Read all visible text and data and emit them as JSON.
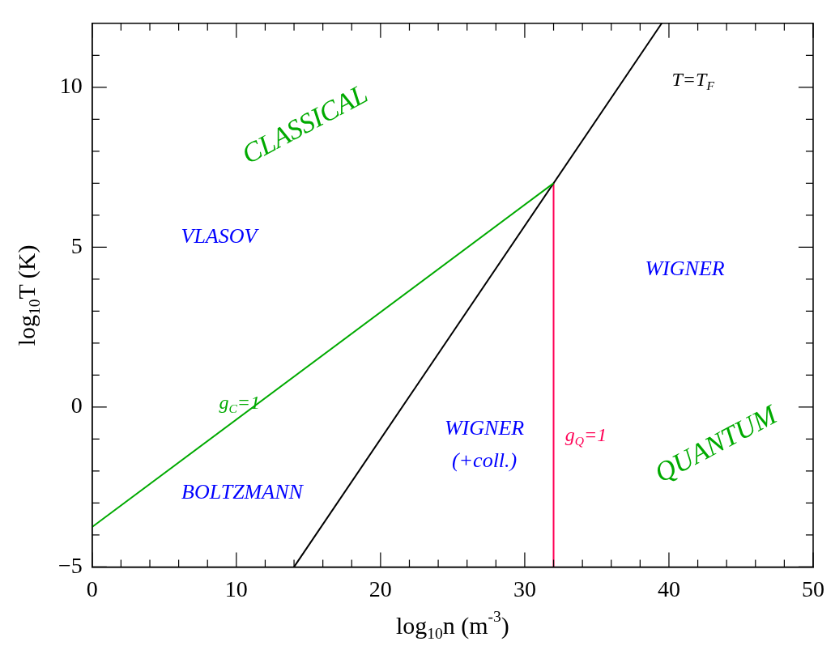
{
  "chart_data": {
    "type": "line",
    "xlabel": "log$_{10}$n (m$^{-3}$)",
    "ylabel": "log$_{10}$T (K)",
    "xlim": [
      0,
      50
    ],
    "ylim": [
      -5,
      12
    ],
    "xticks": [
      0,
      {
        "value": 2,
        "label": null
      },
      {
        "value": 4,
        "label": null
      },
      {
        "value": 6,
        "label": null
      },
      {
        "value": 8,
        "label": null
      },
      10,
      {
        "value": 12,
        "label": null
      },
      {
        "value": 14,
        "label": null
      },
      {
        "value": 16,
        "label": null
      },
      {
        "value": 18,
        "label": null
      },
      20,
      {
        "value": 22,
        "label": null
      },
      {
        "value": 24,
        "label": null
      },
      {
        "value": 26,
        "label": null
      },
      {
        "value": 28,
        "label": null
      },
      30,
      {
        "value": 32,
        "label": null
      },
      {
        "value": 34,
        "label": null
      },
      {
        "value": 36,
        "label": null
      },
      {
        "value": 38,
        "label": null
      },
      40,
      {
        "value": 42,
        "label": null
      },
      {
        "value": 44,
        "label": null
      },
      {
        "value": 46,
        "label": null
      },
      {
        "value": 48,
        "label": null
      },
      50
    ],
    "yticks": [
      {
        "value": -5,
        "label": "−5"
      },
      {
        "value": -4,
        "label": null
      },
      {
        "value": -3,
        "label": null
      },
      {
        "value": -2,
        "label": null
      },
      {
        "value": -1,
        "label": null
      },
      0,
      {
        "value": 1,
        "label": null
      },
      {
        "value": 2,
        "label": null
      },
      {
        "value": 3,
        "label": null
      },
      {
        "value": 4,
        "label": null
      },
      5,
      {
        "value": 6,
        "label": null
      },
      {
        "value": 7,
        "label": null
      },
      {
        "value": 8,
        "label": null
      },
      {
        "value": 9,
        "label": null
      },
      10,
      {
        "value": 11,
        "label": null
      }
    ],
    "grid": false,
    "legend": false,
    "marker": "none",
    "line_style": "solid",
    "series": [
      {
        "name": "g$_{C}$=1",
        "color": "#00aa00",
        "x": [
          0,
          32
        ],
        "values": [
          -3.75,
          7
        ]
      },
      {
        "name": "T=T$_{F}$",
        "color": "#000000",
        "x": [
          14,
          39.5
        ],
        "values": [
          -5,
          12
        ]
      },
      {
        "name": "g$_{Q}$=1",
        "color": "#ff0055",
        "x": [
          32,
          32
        ],
        "values": [
          -5,
          7
        ]
      }
    ],
    "annotations": [
      "CLASSICAL",
      "VLASOV",
      "WIGNER",
      "WIGNER",
      "(+coll.)",
      "BOLTZMANN",
      "QUANTUM"
    ]
  }
}
